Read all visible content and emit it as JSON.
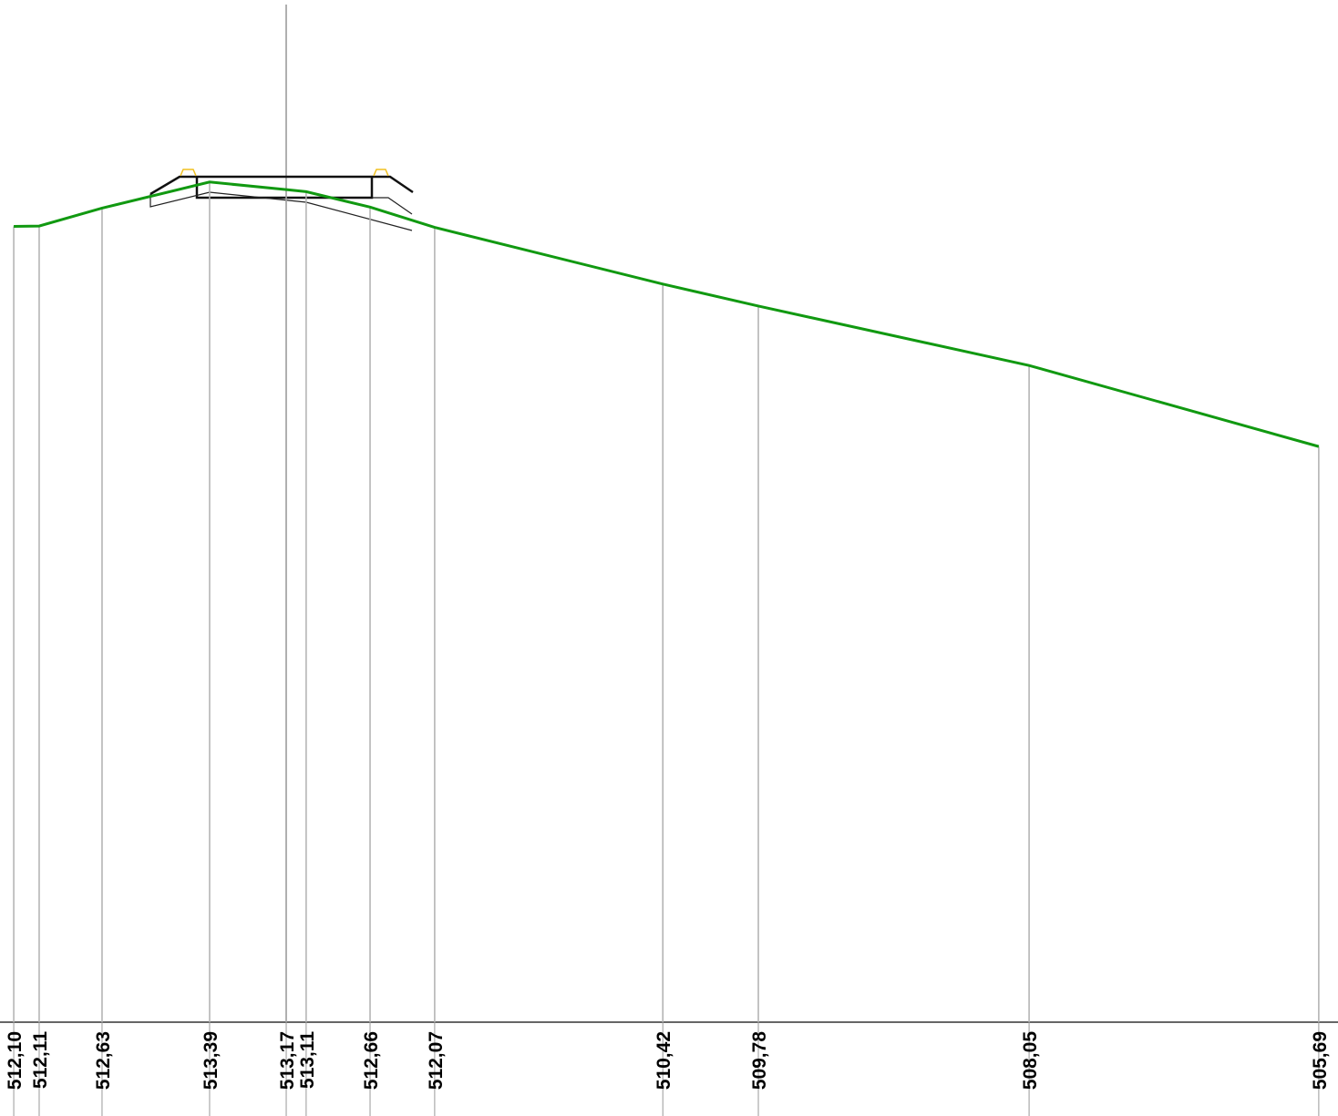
{
  "chart_data": {
    "type": "line",
    "x": [
      0,
      0.74,
      2.57,
      5.7,
      7.93,
      8.51,
      10.37,
      12.25,
      18.89,
      21.67,
      29.55,
      37.98
    ],
    "series": [
      {
        "color": "#119911",
        "values": [
          512.1,
          512.11,
          512.63,
          513.39,
          513.17,
          513.11,
          512.66,
          512.07,
          510.42,
          509.78,
          508.05,
          505.69
        ],
        "value_labels": [
          "512,10",
          "512,11",
          "512,63",
          "513,39",
          "513,17",
          "513,11",
          "512,66",
          "512,07",
          "510,42",
          "509,78",
          "508,05",
          "505,69"
        ]
      }
    ],
    "xlim": [
      -0.4,
      38.54
    ],
    "ylim": [
      488.93,
      518.69
    ]
  }
}
